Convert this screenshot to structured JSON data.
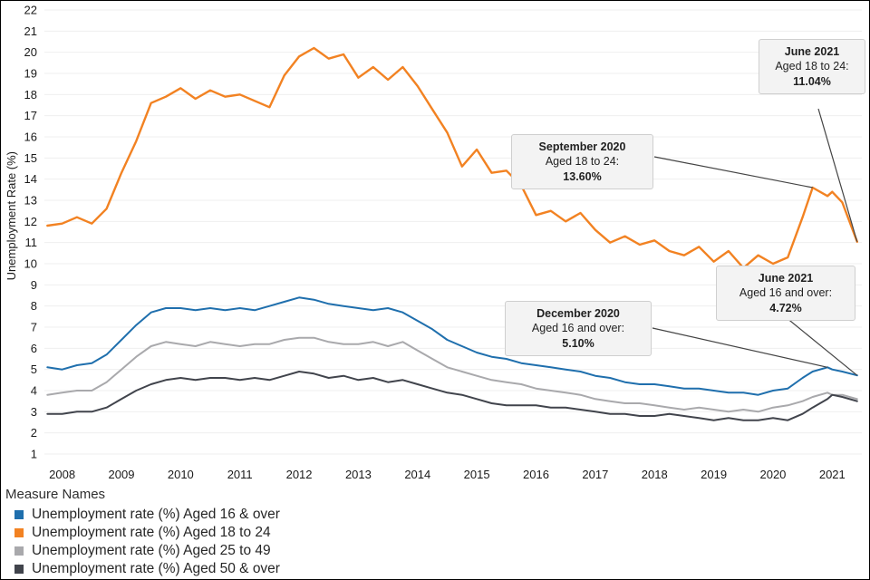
{
  "colors": {
    "background": "#ffffff",
    "frame_border": "#000000",
    "grid": "#efefef",
    "tick_text": "#1a1a1a",
    "annotation_bg": "#f3f3f3",
    "annotation_border": "#cfcfcf",
    "connector": "#444444"
  },
  "chart_data": {
    "type": "line",
    "title": "",
    "xlabel": "",
    "ylabel": "Unemployment Rate (%)",
    "legend_title": "Measure Names",
    "grid": true,
    "legend_position": "bottom-left",
    "xlim": [
      2007.7,
      2021.5
    ],
    "ylim": [
      1,
      22
    ],
    "xticks": [
      2008,
      2009,
      2010,
      2011,
      2012,
      2013,
      2014,
      2015,
      2016,
      2017,
      2018,
      2019,
      2020,
      2021
    ],
    "yticks": [
      1,
      2,
      3,
      4,
      5,
      6,
      7,
      8,
      9,
      10,
      11,
      12,
      13,
      14,
      15,
      16,
      17,
      18,
      19,
      20,
      21,
      22
    ],
    "x": [
      2007.75,
      2008,
      2008.25,
      2008.5,
      2008.75,
      2009,
      2009.25,
      2009.5,
      2009.75,
      2010,
      2010.25,
      2010.5,
      2010.75,
      2011,
      2011.25,
      2011.5,
      2011.75,
      2012,
      2012.25,
      2012.5,
      2012.75,
      2013,
      2013.25,
      2013.5,
      2013.75,
      2014,
      2014.25,
      2014.5,
      2014.75,
      2015,
      2015.25,
      2015.5,
      2015.75,
      2016,
      2016.25,
      2016.5,
      2016.75,
      2017,
      2017.25,
      2017.5,
      2017.75,
      2018,
      2018.25,
      2018.5,
      2018.75,
      2019,
      2019.25,
      2019.5,
      2019.75,
      2020,
      2020.25,
      2020.5,
      2020.67,
      2020.92,
      2021,
      2021.17,
      2021.42
    ],
    "series": [
      {
        "id": "aged-16-over",
        "name": "Unemployment rate (%) Aged 16 & over",
        "color": "#1f6fad",
        "values": [
          5.1,
          5.0,
          5.2,
          5.3,
          5.7,
          6.4,
          7.1,
          7.7,
          7.9,
          7.9,
          7.8,
          7.9,
          7.8,
          7.9,
          7.8,
          8.0,
          8.2,
          8.4,
          8.3,
          8.1,
          8.0,
          7.9,
          7.8,
          7.9,
          7.7,
          7.3,
          6.9,
          6.4,
          6.1,
          5.8,
          5.6,
          5.5,
          5.3,
          5.2,
          5.1,
          5.0,
          4.9,
          4.7,
          4.6,
          4.4,
          4.3,
          4.3,
          4.2,
          4.1,
          4.1,
          4.0,
          3.9,
          3.9,
          3.8,
          4.0,
          4.1,
          4.6,
          4.9,
          5.1,
          5.0,
          4.9,
          4.72
        ]
      },
      {
        "id": "aged-18-to-24",
        "name": "Unemployment rate (%) Aged 18 to 24",
        "color": "#f28222",
        "values": [
          11.8,
          11.9,
          12.2,
          11.9,
          12.6,
          14.3,
          15.8,
          17.6,
          17.9,
          18.3,
          17.8,
          18.2,
          17.9,
          18.0,
          17.7,
          17.4,
          18.9,
          19.8,
          20.2,
          19.7,
          19.9,
          18.8,
          19.3,
          18.7,
          19.3,
          18.4,
          17.3,
          16.2,
          14.6,
          15.4,
          14.3,
          14.4,
          13.7,
          12.3,
          12.5,
          12.0,
          12.4,
          11.6,
          11.0,
          11.3,
          10.9,
          11.1,
          10.6,
          10.4,
          10.8,
          10.1,
          10.6,
          9.8,
          10.4,
          10.0,
          10.3,
          12.2,
          13.6,
          13.2,
          13.4,
          12.9,
          11.04
        ]
      },
      {
        "id": "aged-25-to-49",
        "name": "Unemployment rate (%) Aged 25 to 49",
        "color": "#a9a9ac",
        "values": [
          3.8,
          3.9,
          4.0,
          4.0,
          4.4,
          5.0,
          5.6,
          6.1,
          6.3,
          6.2,
          6.1,
          6.3,
          6.2,
          6.1,
          6.2,
          6.2,
          6.4,
          6.5,
          6.5,
          6.3,
          6.2,
          6.2,
          6.3,
          6.1,
          6.3,
          5.9,
          5.5,
          5.1,
          4.9,
          4.7,
          4.5,
          4.4,
          4.3,
          4.1,
          4.0,
          3.9,
          3.8,
          3.6,
          3.5,
          3.4,
          3.4,
          3.3,
          3.2,
          3.1,
          3.2,
          3.1,
          3.0,
          3.1,
          3.0,
          3.2,
          3.3,
          3.5,
          3.7,
          3.9,
          3.8,
          3.8,
          3.6
        ]
      },
      {
        "id": "aged-50-over",
        "name": "Unemployment rate (%) Aged 50 & over",
        "color": "#41444c",
        "values": [
          2.9,
          2.9,
          3.0,
          3.0,
          3.2,
          3.6,
          4.0,
          4.3,
          4.5,
          4.6,
          4.5,
          4.6,
          4.6,
          4.5,
          4.6,
          4.5,
          4.7,
          4.9,
          4.8,
          4.6,
          4.7,
          4.5,
          4.6,
          4.4,
          4.5,
          4.3,
          4.1,
          3.9,
          3.8,
          3.6,
          3.4,
          3.3,
          3.3,
          3.3,
          3.2,
          3.2,
          3.1,
          3.0,
          2.9,
          2.9,
          2.8,
          2.8,
          2.9,
          2.8,
          2.7,
          2.6,
          2.7,
          2.6,
          2.6,
          2.7,
          2.6,
          2.9,
          3.2,
          3.6,
          3.8,
          3.7,
          3.5
        ]
      }
    ],
    "annotations": [
      {
        "id": "june-2021-aged-18-24",
        "title": "June 2021",
        "subtitle": "Aged 18 to 24:",
        "value": "11.04%",
        "series": "aged-18-to-24",
        "x": 2021.42,
        "y": 11.04
      },
      {
        "id": "september-2020-aged-18-24",
        "title": "September 2020",
        "subtitle": "Aged 18 to 24:",
        "value": "13.60%",
        "series": "aged-18-to-24",
        "x": 2020.67,
        "y": 13.6
      },
      {
        "id": "june-2021-aged-16-over",
        "title": "June 2021",
        "subtitle": "Aged 16 and over:",
        "value": "4.72%",
        "series": "aged-16-over",
        "x": 2021.42,
        "y": 4.72
      },
      {
        "id": "december-2020-aged-16-over",
        "title": "December 2020",
        "subtitle": "Aged 16 and over:",
        "value": "5.10%",
        "series": "aged-16-over",
        "x": 2020.92,
        "y": 5.1
      }
    ]
  }
}
